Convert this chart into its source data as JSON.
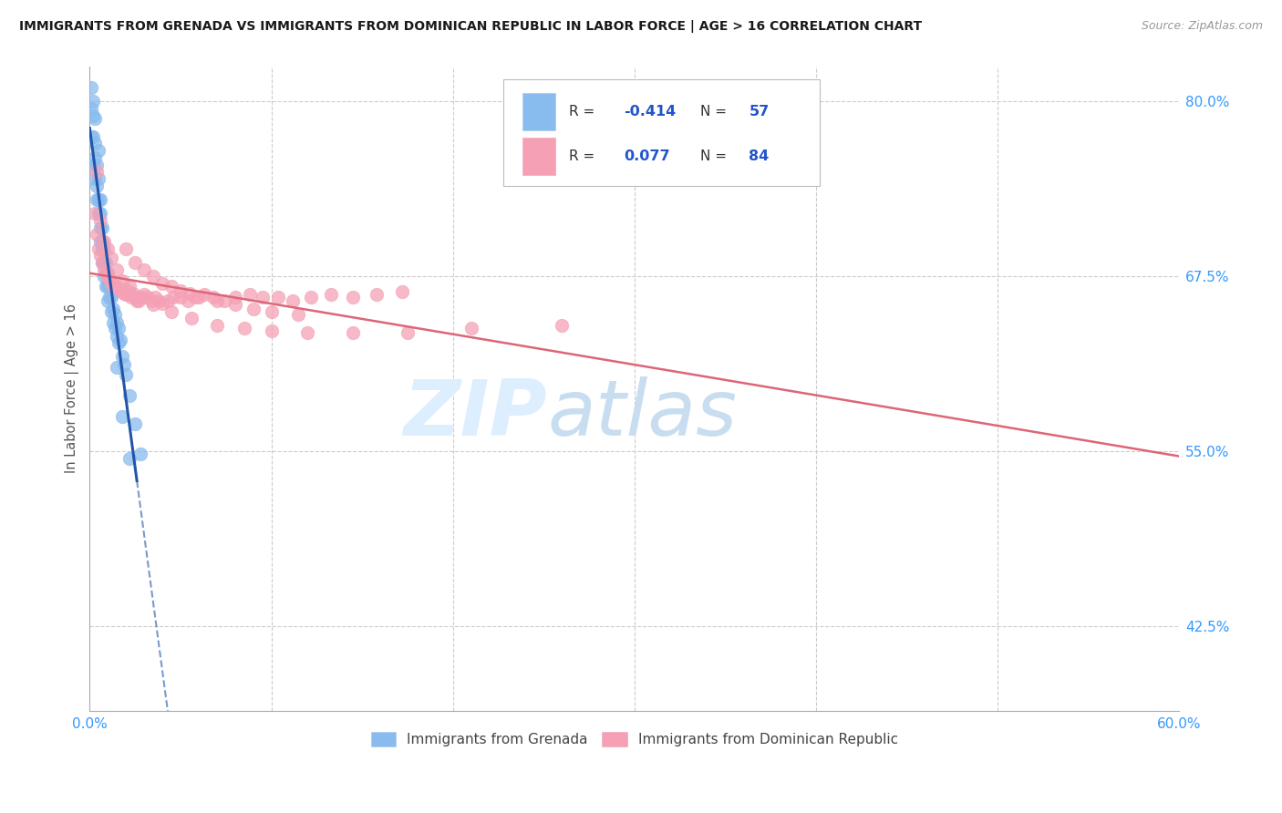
{
  "title": "IMMIGRANTS FROM GRENADA VS IMMIGRANTS FROM DOMINICAN REPUBLIC IN LABOR FORCE | AGE > 16 CORRELATION CHART",
  "source": "Source: ZipAtlas.com",
  "ylabel": "In Labor Force | Age > 16",
  "xlim": [
    0.0,
    0.6
  ],
  "ylim": [
    0.365,
    0.825
  ],
  "yticks_right": [
    0.425,
    0.55,
    0.675,
    0.8
  ],
  "yticklabels_right": [
    "42.5%",
    "55.0%",
    "67.5%",
    "80.0%"
  ],
  "grenada_color": "#88bbee",
  "dominican_color": "#f5a0b5",
  "grenada_line_color": "#2255aa",
  "dominican_line_color": "#dd6677",
  "legend_label1": "Immigrants from Grenada",
  "legend_label2": "Immigrants from Dominican Republic",
  "background_color": "#ffffff",
  "grid_color": "#cccccc",
  "grenada_x": [
    0.001,
    0.001,
    0.002,
    0.002,
    0.002,
    0.003,
    0.003,
    0.003,
    0.004,
    0.004,
    0.004,
    0.005,
    0.005,
    0.005,
    0.006,
    0.006,
    0.006,
    0.006,
    0.007,
    0.007,
    0.007,
    0.007,
    0.008,
    0.008,
    0.008,
    0.009,
    0.009,
    0.009,
    0.01,
    0.01,
    0.01,
    0.011,
    0.011,
    0.012,
    0.012,
    0.013,
    0.013,
    0.014,
    0.014,
    0.015,
    0.015,
    0.016,
    0.016,
    0.017,
    0.018,
    0.019,
    0.02,
    0.022,
    0.025,
    0.028,
    0.001,
    0.002,
    0.003,
    0.005,
    0.015,
    0.018,
    0.022
  ],
  "grenada_y": [
    0.795,
    0.775,
    0.79,
    0.775,
    0.755,
    0.77,
    0.76,
    0.745,
    0.755,
    0.74,
    0.73,
    0.745,
    0.73,
    0.72,
    0.73,
    0.72,
    0.71,
    0.7,
    0.71,
    0.7,
    0.695,
    0.685,
    0.695,
    0.685,
    0.675,
    0.685,
    0.678,
    0.668,
    0.678,
    0.668,
    0.658,
    0.668,
    0.66,
    0.66,
    0.65,
    0.652,
    0.642,
    0.648,
    0.638,
    0.642,
    0.632,
    0.638,
    0.628,
    0.63,
    0.618,
    0.612,
    0.605,
    0.59,
    0.57,
    0.548,
    0.81,
    0.8,
    0.788,
    0.765,
    0.61,
    0.575,
    0.545
  ],
  "dominican_x": [
    0.003,
    0.004,
    0.005,
    0.006,
    0.007,
    0.008,
    0.009,
    0.01,
    0.011,
    0.012,
    0.013,
    0.014,
    0.015,
    0.016,
    0.017,
    0.018,
    0.019,
    0.02,
    0.021,
    0.022,
    0.023,
    0.024,
    0.025,
    0.026,
    0.027,
    0.028,
    0.03,
    0.032,
    0.034,
    0.036,
    0.038,
    0.04,
    0.043,
    0.046,
    0.05,
    0.054,
    0.058,
    0.063,
    0.068,
    0.074,
    0.08,
    0.088,
    0.095,
    0.104,
    0.112,
    0.122,
    0.133,
    0.145,
    0.158,
    0.172,
    0.02,
    0.025,
    0.03,
    0.035,
    0.04,
    0.045,
    0.05,
    0.055,
    0.06,
    0.07,
    0.08,
    0.09,
    0.1,
    0.115,
    0.004,
    0.006,
    0.008,
    0.01,
    0.012,
    0.015,
    0.018,
    0.022,
    0.028,
    0.035,
    0.045,
    0.056,
    0.07,
    0.085,
    0.1,
    0.12,
    0.145,
    0.175,
    0.21,
    0.26
  ],
  "dominican_y": [
    0.72,
    0.705,
    0.695,
    0.69,
    0.685,
    0.68,
    0.678,
    0.675,
    0.673,
    0.67,
    0.668,
    0.668,
    0.668,
    0.666,
    0.665,
    0.664,
    0.663,
    0.662,
    0.665,
    0.662,
    0.66,
    0.663,
    0.66,
    0.658,
    0.658,
    0.66,
    0.662,
    0.66,
    0.658,
    0.66,
    0.658,
    0.656,
    0.658,
    0.66,
    0.66,
    0.658,
    0.66,
    0.662,
    0.66,
    0.658,
    0.66,
    0.662,
    0.66,
    0.66,
    0.658,
    0.66,
    0.662,
    0.66,
    0.662,
    0.664,
    0.695,
    0.685,
    0.68,
    0.675,
    0.67,
    0.668,
    0.665,
    0.663,
    0.66,
    0.658,
    0.655,
    0.652,
    0.65,
    0.648,
    0.75,
    0.715,
    0.7,
    0.695,
    0.688,
    0.68,
    0.672,
    0.668,
    0.66,
    0.655,
    0.65,
    0.645,
    0.64,
    0.638,
    0.636,
    0.635,
    0.635,
    0.635,
    0.638,
    0.64
  ]
}
